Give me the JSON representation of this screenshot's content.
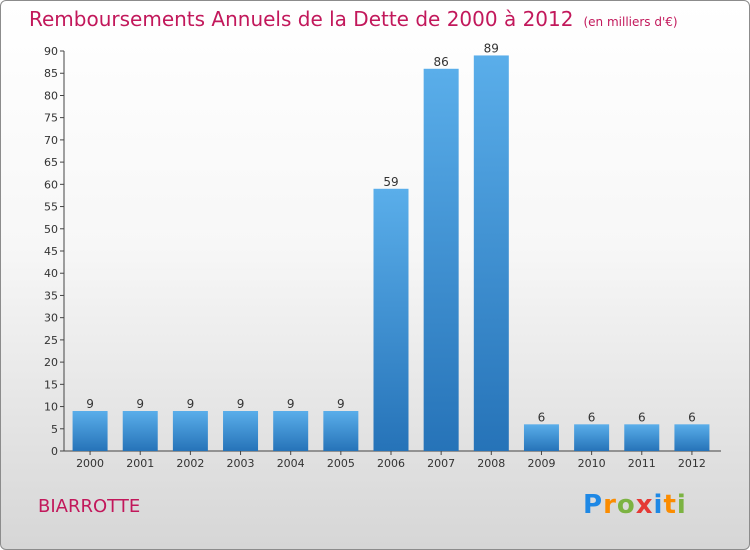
{
  "title": "Remboursements Annuels de la Dette de 2000 à 2012",
  "unit": "(en milliers d'€)",
  "commune": "BIARROTTE",
  "logo": {
    "letters": [
      "P",
      "r",
      "o",
      "x",
      "i",
      "t",
      "i"
    ],
    "colors": [
      "#1e88e5",
      "#fb8c00",
      "#7cb342",
      "#e53935",
      "#1e88e5",
      "#fb8c00",
      "#7cb342"
    ]
  },
  "chart_data": {
    "type": "bar",
    "title": "Remboursements Annuels de la Dette de 2000 à 2012",
    "categories": [
      "2000",
      "2001",
      "2002",
      "2003",
      "2004",
      "2005",
      "2006",
      "2007",
      "2008",
      "2009",
      "2010",
      "2011",
      "2012"
    ],
    "values": [
      9,
      9,
      9,
      9,
      9,
      9,
      59,
      86,
      89,
      6,
      6,
      6,
      6
    ],
    "ylim": [
      0,
      90
    ],
    "yticks": [
      0,
      5,
      10,
      15,
      20,
      25,
      30,
      35,
      40,
      45,
      50,
      55,
      60,
      65,
      70,
      75,
      80,
      85,
      90
    ],
    "grid": false,
    "bar_color": "#3d8fd6",
    "title_color": "#c2185b"
  }
}
